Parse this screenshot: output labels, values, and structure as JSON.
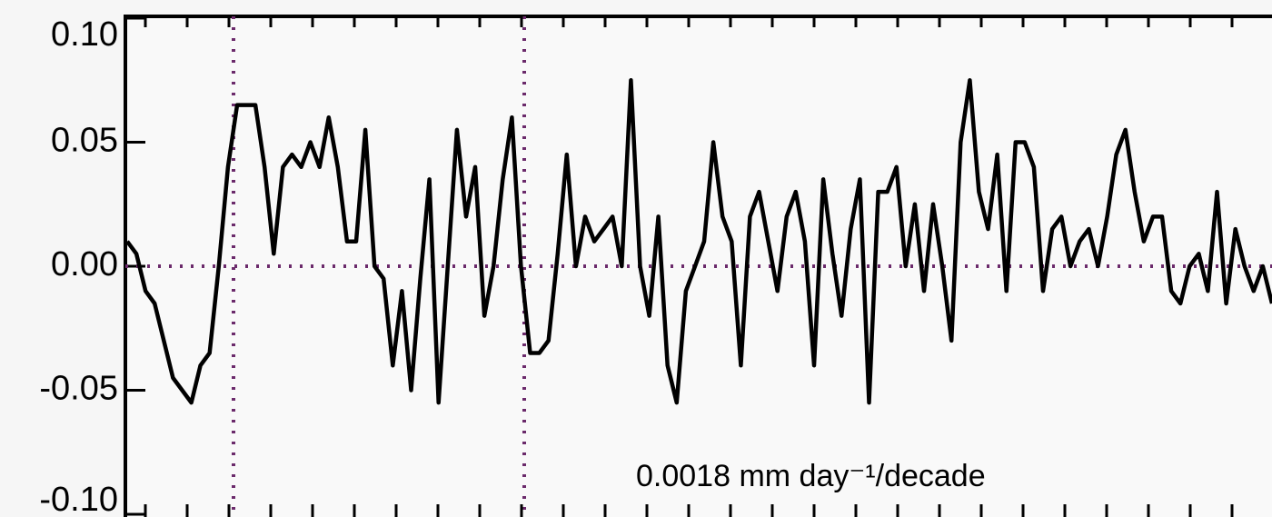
{
  "chart_data": {
    "type": "line",
    "annotation": "0.0018 mm day⁻¹/decade",
    "color": "#000000",
    "ylim": [
      -0.1,
      0.1
    ],
    "yticks": [
      {
        "value": -0.1,
        "label": "-0.10"
      },
      {
        "value": -0.05,
        "label": "-0.05"
      },
      {
        "value": 0,
        "label": "0.00"
      },
      {
        "value": 0.05,
        "label": "0.05"
      },
      {
        "value": 0.1,
        "label": "0.10"
      }
    ],
    "values": [
      0.01,
      0.005,
      -0.01,
      -0.015,
      -0.03,
      -0.045,
      -0.05,
      -0.055,
      -0.04,
      -0.035,
      0.0,
      0.04,
      0.065,
      0.065,
      0.065,
      0.04,
      0.005,
      0.04,
      0.045,
      0.04,
      0.05,
      0.04,
      0.06,
      0.04,
      0.01,
      0.01,
      0.055,
      0.0,
      -0.005,
      -0.04,
      -0.01,
      -0.05,
      -0.005,
      0.035,
      -0.055,
      0.0,
      0.055,
      0.02,
      0.04,
      -0.02,
      0.0,
      0.035,
      0.06,
      0.0,
      -0.035,
      -0.035,
      -0.03,
      0.005,
      0.045,
      0.0,
      0.02,
      0.01,
      0.015,
      0.02,
      0.0,
      0.075,
      0.0,
      -0.02,
      0.02,
      -0.04,
      -0.055,
      -0.01,
      0.0,
      0.01,
      0.05,
      0.02,
      0.01,
      -0.04,
      0.02,
      0.03,
      0.01,
      -0.01,
      0.02,
      0.03,
      0.01,
      -0.04,
      0.035,
      0.005,
      -0.02,
      0.015,
      0.035,
      -0.055,
      0.03,
      0.03,
      0.04,
      0.0,
      0.025,
      -0.01,
      0.025,
      0.0,
      -0.03,
      0.05,
      0.075,
      0.03,
      0.015,
      0.045,
      -0.01,
      0.05,
      0.05,
      0.04,
      -0.01,
      0.015,
      0.02,
      0.0,
      0.01,
      0.015,
      0.0,
      0.02,
      0.045,
      0.055,
      0.03,
      0.01,
      0.02,
      0.02,
      -0.01,
      -0.015,
      0.0,
      0.005,
      -0.01,
      0.03,
      -0.015,
      0.015,
      0.0,
      -0.01,
      0.0,
      -0.015
    ]
  }
}
